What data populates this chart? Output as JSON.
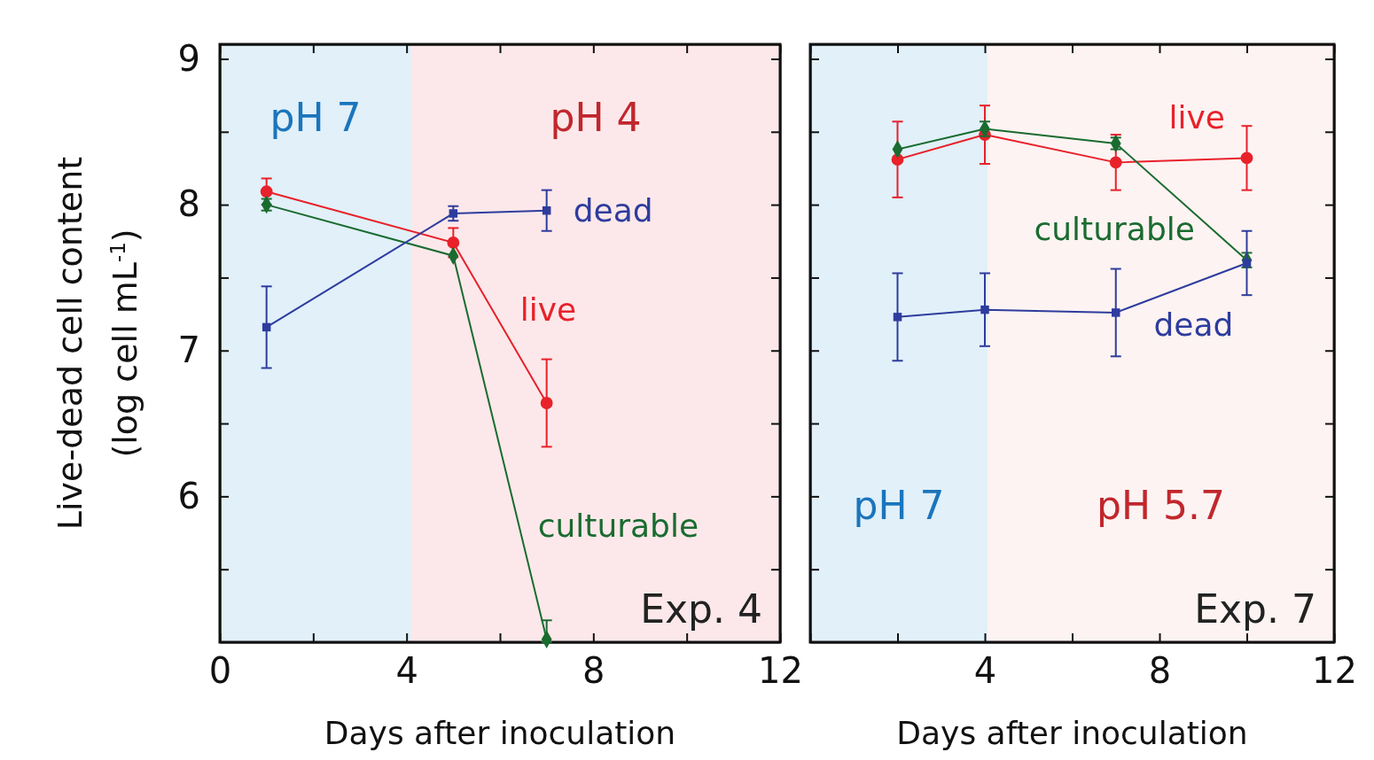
{
  "chart_data": [
    {
      "type": "line",
      "xlabel": "Days after inoculation",
      "ylabel": "Live-dead cell content\n(log cell mL$^{-1}$)",
      "xlim": [
        0,
        12
      ],
      "xticks": [
        0,
        {
          "value": 2,
          "label": null
        },
        4,
        {
          "value": 6,
          "label": null
        },
        8,
        {
          "value": 10,
          "label": null
        },
        12
      ],
      "ylim": [
        5,
        9.1
      ],
      "yticks": [
        {
          "value": 5.5,
          "label": null
        },
        6,
        {
          "value": 6.5,
          "label": null
        },
        7,
        {
          "value": 7.5,
          "label": null
        },
        8,
        {
          "value": 8.5,
          "label": null
        },
        9
      ],
      "bands": [
        {
          "axis": "x",
          "from": 0,
          "to": 4.1,
          "label": "pH 7",
          "color": "#e1f0f9"
        },
        {
          "axis": "x",
          "from": 4.1,
          "to": 12,
          "label": "pH 4",
          "color": "#fce8ea"
        }
      ],
      "annotations": [
        "Exp. 4"
      ],
      "series": [
        {
          "name": "live",
          "color": "#e8212a",
          "marker": "circle",
          "x": [
            1,
            5,
            7
          ],
          "values": [
            8.09,
            7.74,
            6.64
          ],
          "errors": [
            0.09,
            0.1,
            0.3
          ]
        },
        {
          "name": "culturable",
          "color": "#1a6b30",
          "marker": "diamond",
          "x": [
            1,
            5,
            7
          ],
          "values": [
            8.0,
            7.65,
            5.02
          ],
          "errors": [
            0.04,
            null,
            [
              5.0,
              5.15
            ]
          ]
        },
        {
          "name": "dead",
          "color": "#2e3c9e",
          "marker": "square",
          "x": [
            1,
            5,
            7
          ],
          "values": [
            7.16,
            7.94,
            7.96
          ],
          "errors": [
            0.28,
            0.05,
            0.14
          ]
        }
      ]
    },
    {
      "type": "line",
      "xlabel": "Days after inoculation",
      "tick_labels": "x",
      "xlim": [
        0,
        12
      ],
      "xticks": [
        {
          "value": 0,
          "label": null
        },
        {
          "value": 2,
          "label": null
        },
        4,
        {
          "value": 6,
          "label": null
        },
        8,
        {
          "value": 10,
          "label": null
        },
        12
      ],
      "ylim": [
        5,
        9.1
      ],
      "yticks": [
        {
          "value": 5.5,
          "label": null
        },
        {
          "value": 6,
          "label": null
        },
        {
          "value": 6.5,
          "label": null
        },
        {
          "value": 7,
          "label": null
        },
        {
          "value": 7.5,
          "label": null
        },
        {
          "value": 8,
          "label": null
        },
        {
          "value": 8.5,
          "label": null
        },
        {
          "value": 9,
          "label": null
        }
      ],
      "bands": [
        {
          "axis": "x",
          "from": 0,
          "to": 4.06,
          "label": "pH 7",
          "color": "#e1f0f9"
        },
        {
          "axis": "x",
          "from": 4.06,
          "to": 12,
          "label": "pH 5.7",
          "color": "#fdf3f2"
        }
      ],
      "annotations": [
        "Exp. 7"
      ],
      "series": [
        {
          "name": "live",
          "color": "#e8212a",
          "marker": "circle",
          "x": [
            2,
            4,
            7,
            10
          ],
          "values": [
            8.31,
            8.48,
            8.29,
            8.32
          ],
          "errors": [
            0.26,
            0.2,
            0.19,
            0.22
          ]
        },
        {
          "name": "culturable",
          "color": "#1a6b30",
          "marker": "diamond",
          "x": [
            2,
            4,
            7,
            10
          ],
          "values": [
            8.38,
            8.52,
            8.42,
            7.62
          ],
          "errors": [
            null,
            0.05,
            0.04,
            0.05
          ]
        },
        {
          "name": "dead",
          "color": "#2e3c9e",
          "marker": "square",
          "x": [
            2,
            4,
            7,
            10
          ],
          "values": [
            7.23,
            7.28,
            7.26,
            7.6
          ],
          "errors": [
            0.3,
            0.25,
            0.3,
            0.22
          ]
        }
      ]
    }
  ]
}
